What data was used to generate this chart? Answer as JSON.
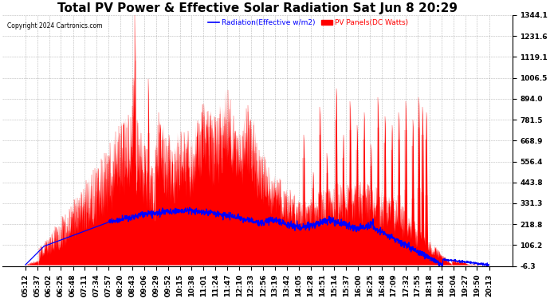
{
  "title": "Total PV Power & Effective Solar Radiation Sat Jun 8 20:29",
  "copyright": "Copyright 2024 Cartronics.com",
  "legend_radiation": "Radiation(Effective w/m2)",
  "legend_pv": "PV Panels(DC Watts)",
  "ylabel_right_values": [
    1344.1,
    1231.6,
    1119.1,
    1006.5,
    894.0,
    781.5,
    668.9,
    556.4,
    443.8,
    331.3,
    218.8,
    106.2,
    -6.3
  ],
  "ymin": -6.3,
  "ymax": 1344.1,
  "background_color": "#ffffff",
  "plot_bg_color": "#ffffff",
  "grid_color": "#888888",
  "radiation_color": "#0000ff",
  "pv_fill_color": "#ff0000",
  "pv_line_color": "#ff0000",
  "title_fontsize": 11,
  "tick_fontsize": 6.5,
  "x_labels": [
    "05:12",
    "05:37",
    "06:02",
    "06:25",
    "06:48",
    "07:11",
    "07:34",
    "07:57",
    "08:20",
    "08:43",
    "09:06",
    "09:29",
    "09:52",
    "10:15",
    "10:38",
    "11:01",
    "11:24",
    "11:47",
    "12:10",
    "12:33",
    "12:56",
    "13:19",
    "13:42",
    "14:05",
    "14:28",
    "14:51",
    "15:14",
    "15:37",
    "16:00",
    "16:25",
    "16:48",
    "17:09",
    "17:32",
    "17:55",
    "18:18",
    "18:41",
    "19:04",
    "19:27",
    "19:50",
    "20:13"
  ]
}
